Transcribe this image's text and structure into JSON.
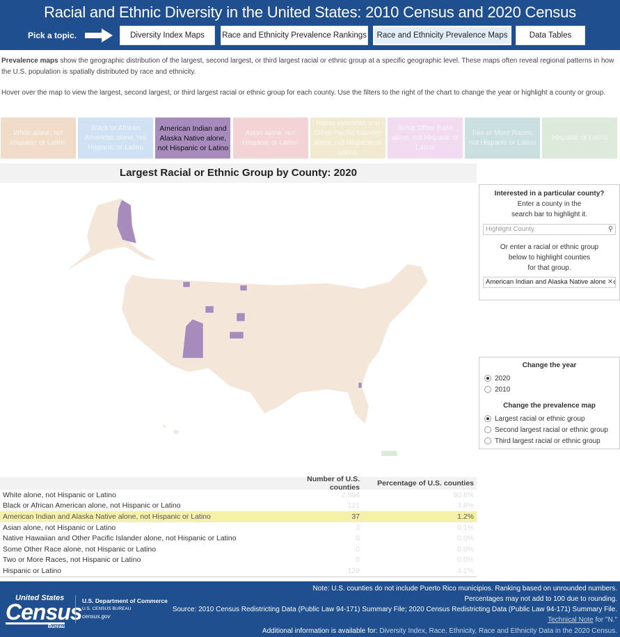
{
  "header": {
    "title": "Racial and Ethnic Diversity in the United States: 2010 Census and 2020 Census",
    "pick": "Pick a topic.",
    "nav": [
      "Diversity Index Maps",
      "Race and Ethnicity Prevalence Rankings",
      "Race and Ethnicity Prevalence Maps",
      "Data Tables"
    ],
    "selected_nav": "Race and Ethnicity Prevalence Maps"
  },
  "description": {
    "bold": "Prevalence maps",
    "p1": " show the geographic distribution of the largest, second largest, or third largest racial or ethnic group at a specific geographic level. These maps often reveal regional patterns in how the U.S. population is spatially distributed by race and ethnicity.",
    "p2": "Hover over the map to view the largest, second largest, or third largest racial or ethnic group for each county. Use the filters to the right of the chart to change the year or highlight a county or group."
  },
  "legend": [
    {
      "label": "White alone, not Hispanic or Latino",
      "color": "#f0dcc8"
    },
    {
      "label": "Black or African American alone, not Hispanic or Latino",
      "color": "#cfe1f2"
    },
    {
      "label": "American Indian and Alaska Native alone, not Hispanic or Latino",
      "color": "#a88bbd",
      "active": true
    },
    {
      "label": "Asian alone, not Hispanic or Latino",
      "color": "#f3d3d6"
    },
    {
      "label": "Native Hawaiian and Other Pacific Islander alone, not Hispanic or Latino",
      "color": "#f2ead0"
    },
    {
      "label": "Some Other Race alone, not Hispanic or Latino",
      "color": "#f2daf0"
    },
    {
      "label": "Two or More Races, not Hispanic or Latino",
      "color": "#c9dfe0"
    },
    {
      "label": "Hispanic or Latino",
      "color": "#dde9db"
    }
  ],
  "map": {
    "title": "Largest Racial or Ethnic Group by County: 2020",
    "base_color": "#f4e6d8",
    "highlight_color": "#a88bbd"
  },
  "search_panel": {
    "heading": "Interested in a particular county?",
    "text1": "Enter a county in the",
    "text2": "search bar to highlight it.",
    "county_placeholder": "Highlight County",
    "text3": "Or enter a racial or ethnic group",
    "text4": "below to highlight counties",
    "text5": "for that group.",
    "group_value": "American Indian and Alaska Native alone, not Hispanic or Latino"
  },
  "filters": {
    "year_heading": "Change the year",
    "years": [
      "2020",
      "2010"
    ],
    "selected_year": "2020",
    "map_heading": "Change the prevalence map",
    "maps": [
      "Largest racial or ethnic group",
      "Second largest racial or ethnic group",
      "Third largest racial or ethnic group"
    ],
    "selected_map": "Largest racial or ethnic group"
  },
  "table": {
    "headers": [
      "",
      "Number of U.S. counties",
      "Percentage of U.S. counties"
    ],
    "rows": [
      {
        "name": "White alone, not Hispanic or Latino",
        "count": "2,854",
        "pct": "90.8%"
      },
      {
        "name": "Black or African American alone, not Hispanic or Latino",
        "count": "121",
        "pct": "3.8%"
      },
      {
        "name": "American Indian and Alaska Native alone, not Hispanic or Latino",
        "count": "37",
        "pct": "1.2%",
        "highlight": true
      },
      {
        "name": "Asian alone, not Hispanic or Latino",
        "count": "3",
        "pct": "0.1%"
      },
      {
        "name": "Native Hawaiian and Other Pacific Islander alone, not Hispanic or Latino",
        "count": "0",
        "pct": "0.0%"
      },
      {
        "name": "Some Other Race alone, not Hispanic or Latino",
        "count": "0",
        "pct": "0.0%"
      },
      {
        "name": "Two or More Races, not Hispanic or Latino",
        "count": "0",
        "pct": "0.0%"
      },
      {
        "name": "Hispanic or Latino",
        "count": "128",
        "pct": "4.1%"
      }
    ]
  },
  "footer": {
    "logo_top": "United States",
    "logo_main": "Census",
    "logo_bureau": "Bureau",
    "dept": "U.S. Department of Commerce",
    "bureau": "U.S. CENSUS BUREAU",
    "site": "census.gov",
    "note1": "Note: U.S. counties do not include Puerto Rico municipios. Ranking based on unrounded numbers.",
    "note2": "Percentages may not add to 100 due to rounding.",
    "source": "Source: 2010 Census Redistricting Data (Public Law 94-171) Summary File; 2020 Census Redistricting Data (Public Law 94-171) Summary File.",
    "tech_link": "Technical Note",
    "tech_rest": " for \"N.\"",
    "additional": "Additional information is available for: ",
    "links": "Diversity Index,  Race,  Ethnicity, Race and Ethnicity Data in the 2020 Census."
  }
}
